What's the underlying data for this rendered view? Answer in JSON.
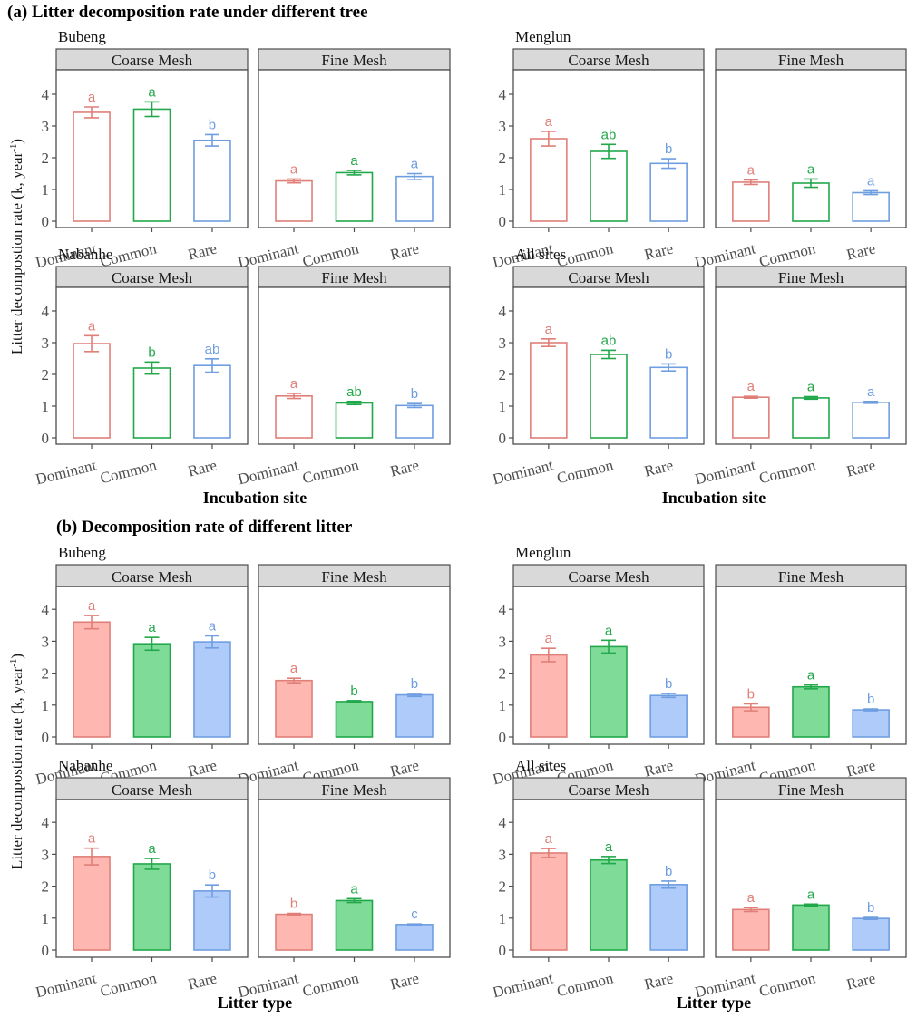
{
  "figure": {
    "y_axis_label_main": "Litter decompostion rate (k, year",
    "y_axis_label_sup": "-1",
    "y_axis_label_close": ")"
  },
  "colors": {
    "Dominant": "#e07f78",
    "Common": "#22a84a",
    "Rare": "#6f9ee0",
    "Dominant_fill": "#ffb7b2",
    "Common_fill": "#7fdb98",
    "Rare_fill": "#afcbfa",
    "strip_bg": "#d9d9d9",
    "axis": "#4d4d4d"
  },
  "chart_data": [
    {
      "type": "bar",
      "section": "a",
      "title": "(a) Litter decomposition rate under different tree",
      "xlabel": "Incubation site",
      "ylabel": "Litter decompostion rate (k, year-1)",
      "ylim": [
        0,
        4.7
      ],
      "yticks": [
        "0",
        "1",
        "2",
        "3",
        "4"
      ],
      "categories": [
        "Dominant",
        "Common",
        "Rare"
      ],
      "filled": false,
      "grid": false,
      "sites": [
        {
          "site": "Bubeng",
          "panels": [
            {
              "facet": "Coarse Mesh",
              "values": [
                3.43,
                3.53,
                2.55
              ],
              "errors": [
                0.17,
                0.23,
                0.18
              ],
              "letters": [
                "a",
                "a",
                "b"
              ]
            },
            {
              "facet": "Fine Mesh",
              "values": [
                1.27,
                1.53,
                1.41
              ],
              "errors": [
                0.06,
                0.07,
                0.09
              ],
              "letters": [
                "a",
                "a",
                "a"
              ]
            }
          ]
        },
        {
          "site": "Menglun",
          "panels": [
            {
              "facet": "Coarse Mesh",
              "values": [
                2.6,
                2.2,
                1.82
              ],
              "errors": [
                0.23,
                0.22,
                0.15
              ],
              "letters": [
                "a",
                "ab",
                "b"
              ]
            },
            {
              "facet": "Fine Mesh",
              "values": [
                1.23,
                1.2,
                0.9
              ],
              "errors": [
                0.07,
                0.13,
                0.06
              ],
              "letters": [
                "a",
                "a",
                "a"
              ]
            }
          ]
        },
        {
          "site": "Nabanhe",
          "panels": [
            {
              "facet": "Coarse Mesh",
              "values": [
                2.97,
                2.2,
                2.28
              ],
              "errors": [
                0.25,
                0.19,
                0.21
              ],
              "letters": [
                "a",
                "b",
                "ab"
              ]
            },
            {
              "facet": "Fine Mesh",
              "values": [
                1.32,
                1.1,
                1.02
              ],
              "errors": [
                0.08,
                0.05,
                0.06
              ],
              "letters": [
                "a",
                "ab",
                "b"
              ]
            }
          ]
        },
        {
          "site": "All sites",
          "panels": [
            {
              "facet": "Coarse Mesh",
              "values": [
                3.0,
                2.63,
                2.22
              ],
              "errors": [
                0.12,
                0.13,
                0.11
              ],
              "letters": [
                "a",
                "ab",
                "b"
              ]
            },
            {
              "facet": "Fine Mesh",
              "values": [
                1.28,
                1.26,
                1.12
              ],
              "errors": [
                0.03,
                0.04,
                0.03
              ],
              "letters": [
                "a",
                "a",
                "a"
              ]
            }
          ]
        }
      ]
    },
    {
      "type": "bar",
      "section": "b",
      "title": "(b) Decomposition rate of different litter",
      "xlabel": "Litter type",
      "ylabel": "Litter decompostion rate (k, year-1)",
      "ylim": [
        0,
        4.7
      ],
      "yticks": [
        "0",
        "1",
        "2",
        "3",
        "4"
      ],
      "categories": [
        "Dominant",
        "Common",
        "Rare"
      ],
      "filled": true,
      "grid": false,
      "sites": [
        {
          "site": "Bubeng",
          "panels": [
            {
              "facet": "Coarse Mesh",
              "values": [
                3.6,
                2.92,
                2.98
              ],
              "errors": [
                0.21,
                0.2,
                0.19
              ],
              "letters": [
                "a",
                "a",
                "a"
              ]
            },
            {
              "facet": "Fine Mesh",
              "values": [
                1.77,
                1.11,
                1.32
              ],
              "errors": [
                0.07,
                0.03,
                0.05
              ],
              "letters": [
                "a",
                "b",
                "b"
              ]
            }
          ]
        },
        {
          "site": "Menglun",
          "panels": [
            {
              "facet": "Coarse Mesh",
              "values": [
                2.57,
                2.83,
                1.3
              ],
              "errors": [
                0.21,
                0.2,
                0.06
              ],
              "letters": [
                "a",
                "a",
                "b"
              ]
            },
            {
              "facet": "Fine Mesh",
              "values": [
                0.93,
                1.57,
                0.85
              ],
              "errors": [
                0.11,
                0.06,
                0.03
              ],
              "letters": [
                "b",
                "a",
                "b"
              ]
            }
          ]
        },
        {
          "site": "Nabanhe",
          "panels": [
            {
              "facet": "Coarse Mesh",
              "values": [
                2.93,
                2.7,
                1.85
              ],
              "errors": [
                0.26,
                0.17,
                0.19
              ],
              "letters": [
                "a",
                "a",
                "b"
              ]
            },
            {
              "facet": "Fine Mesh",
              "values": [
                1.12,
                1.55,
                0.8
              ],
              "errors": [
                0.03,
                0.06,
                0.02
              ],
              "letters": [
                "b",
                "a",
                "c"
              ]
            }
          ]
        },
        {
          "site": "All sites",
          "panels": [
            {
              "facet": "Coarse Mesh",
              "values": [
                3.04,
                2.82,
                2.05
              ],
              "errors": [
                0.14,
                0.11,
                0.11
              ],
              "letters": [
                "a",
                "a",
                "b"
              ]
            },
            {
              "facet": "Fine Mesh",
              "values": [
                1.27,
                1.41,
                0.99
              ],
              "errors": [
                0.06,
                0.03,
                0.03
              ],
              "letters": [
                "a",
                "a",
                "b"
              ]
            }
          ]
        }
      ]
    }
  ]
}
